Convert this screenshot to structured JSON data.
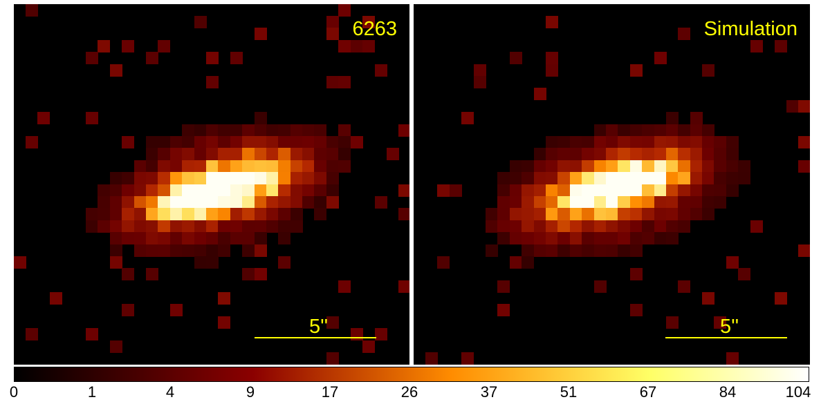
{
  "panels": [
    {
      "label": "6263",
      "scale_label": "5''"
    },
    {
      "label": "Simulation",
      "scale_label": "5''"
    }
  ],
  "colorbar": {
    "ticks": [
      "0",
      "1",
      "4",
      "9",
      "17",
      "26",
      "37",
      "51",
      "67",
      "84",
      "104"
    ],
    "colors": [
      "#000000",
      "#8b0000",
      "#ff8c00",
      "#ffff66",
      "#ffffff"
    ]
  },
  "colors": {
    "annotation": "#ffff00",
    "background": "#000000"
  }
}
